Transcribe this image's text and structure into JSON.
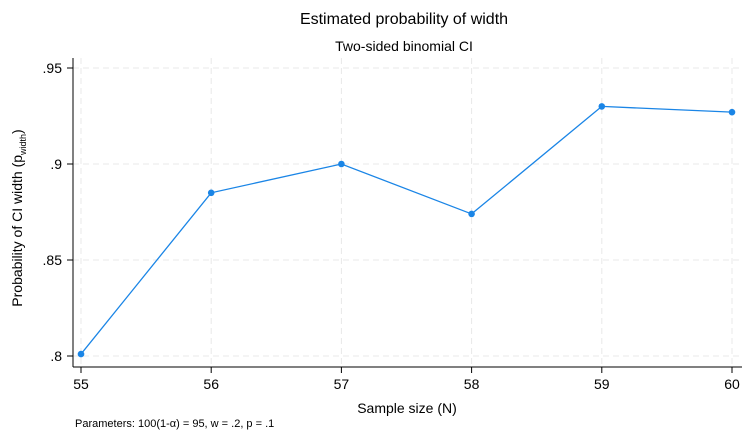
{
  "chart_data": {
    "type": "line",
    "title": "Estimated probability of width",
    "subtitle": "Two-sided binomial CI",
    "xlabel": "Sample size (N)",
    "ylabel_main": "Probability of CI width (p",
    "ylabel_sub": "width",
    "ylabel_close": ")",
    "x": [
      55,
      56,
      57,
      58,
      59,
      60
    ],
    "y": [
      0.801,
      0.885,
      0.9,
      0.874,
      0.93,
      0.927
    ],
    "x_ticks": [
      "55",
      "56",
      "57",
      "58",
      "59",
      "60"
    ],
    "y_ticks": [
      {
        "value": 0.8,
        "label": ".8"
      },
      {
        "value": 0.85,
        "label": ".85"
      },
      {
        "value": 0.9,
        "label": ".9"
      },
      {
        "value": 0.95,
        "label": ".95"
      }
    ],
    "xlim": [
      55,
      60
    ],
    "ylim": [
      0.8,
      0.95
    ],
    "grid": true,
    "series_color": "#1a85e6",
    "note": "Parameters: 100(1-α) = 95, w = .2, p = .1"
  }
}
